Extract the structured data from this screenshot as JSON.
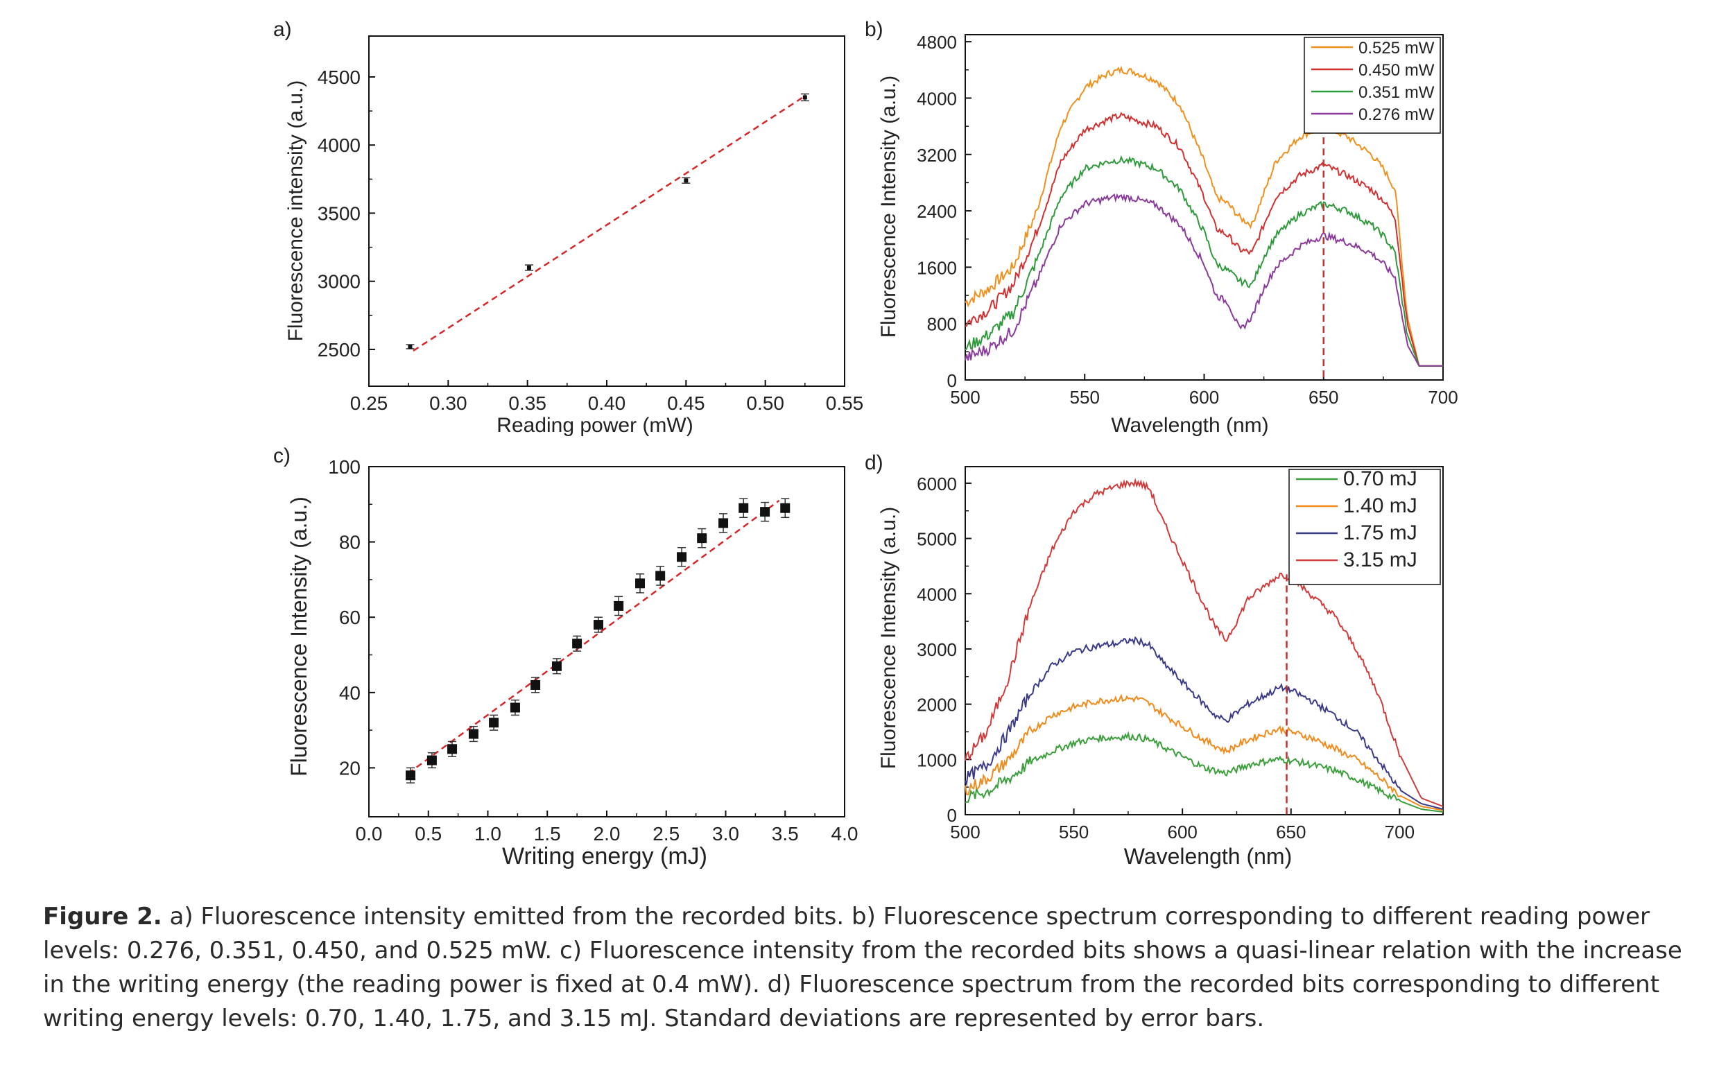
{
  "caption": {
    "label": "Figure 2.",
    "text": " a) Fluorescence intensity emitted from the recorded bits. b) Fluorescence spectrum corresponding to different reading power levels: 0.276, 0.351, 0.450, and 0.525 mW. c) Fluorescence intensity from the recorded bits shows a quasi-linear relation with the increase in the writing energy (the reading power is fixed at 0.4 mW). d) Fluorescence spectrum from the recorded bits corresponding to different writing energy levels: 0.70, 1.40, 1.75, and 3.15 mJ. Standard deviations are represented by error bars."
  },
  "chart_data": [
    {
      "panel": "a)",
      "type": "scatter",
      "xlabel": "Reading power (mW)",
      "ylabel": "Fluorescence intensity (a.u.)",
      "xlim": [
        0.25,
        0.55
      ],
      "ylim": [
        2230,
        4800
      ],
      "xticks": [
        "0.25",
        "0.30",
        "0.35",
        "0.40",
        "0.45",
        "0.50",
        "0.55"
      ],
      "yticks": [
        "2500",
        "3000",
        "3500",
        "4000",
        "4500"
      ],
      "points": [
        {
          "x": 0.276,
          "y": 2520,
          "err": 15
        },
        {
          "x": 0.351,
          "y": 3100,
          "err": 20
        },
        {
          "x": 0.45,
          "y": 3740,
          "err": 20
        },
        {
          "x": 0.525,
          "y": 4350,
          "err": 25
        }
      ],
      "fit": {
        "x": [
          0.278,
          0.525
        ],
        "y": [
          2490,
          4360
        ]
      },
      "colors": {
        "fit": "#d62728",
        "points": "#111111"
      }
    },
    {
      "panel": "b)",
      "type": "line",
      "xlabel": "Wavelength (nm)",
      "ylabel": "Fluorescence Intensity (a.u.)",
      "xlim": [
        500,
        700
      ],
      "ylim": [
        0,
        4900
      ],
      "xticks": [
        "500",
        "550",
        "600",
        "650",
        "700"
      ],
      "yticks": [
        "0",
        "800",
        "1600",
        "2400",
        "3200",
        "4000",
        "4800"
      ],
      "legend": "top-right",
      "marker_line_x": 650,
      "x": [
        500,
        510,
        520,
        530,
        540,
        550,
        560,
        565,
        570,
        580,
        590,
        600,
        605,
        610,
        615,
        620,
        625,
        630,
        640,
        650,
        660,
        670,
        675,
        680,
        685,
        690,
        700
      ],
      "series": [
        {
          "name": "0.525 mW",
          "color": "#f0901c",
          "values": [
            1100,
            1300,
            1600,
            2400,
            3600,
            4150,
            4350,
            4400,
            4380,
            4250,
            3900,
            3100,
            2600,
            2500,
            2300,
            2200,
            2650,
            3100,
            3450,
            3600,
            3450,
            3200,
            3000,
            2700,
            900,
            200,
            200
          ]
        },
        {
          "name": "0.450 mW",
          "color": "#d03030",
          "values": [
            800,
            1000,
            1350,
            2100,
            3100,
            3550,
            3700,
            3750,
            3700,
            3600,
            3300,
            2600,
            2150,
            2050,
            1850,
            1800,
            2200,
            2600,
            2900,
            3050,
            2900,
            2700,
            2550,
            2300,
            800,
            200,
            200
          ]
        },
        {
          "name": "0.351 mW",
          "color": "#2e9a3c",
          "values": [
            450,
            650,
            950,
            1700,
            2600,
            3000,
            3100,
            3120,
            3100,
            3000,
            2700,
            2100,
            1650,
            1550,
            1400,
            1350,
            1750,
            2050,
            2350,
            2500,
            2400,
            2200,
            2050,
            1800,
            650,
            200,
            200
          ]
        },
        {
          "name": "0.276 mW",
          "color": "#8a3a9a",
          "values": [
            300,
            450,
            700,
            1400,
            2200,
            2500,
            2580,
            2600,
            2580,
            2480,
            2200,
            1650,
            1200,
            1100,
            700,
            900,
            1300,
            1600,
            1900,
            2050,
            1950,
            1800,
            1650,
            1450,
            500,
            200,
            200
          ]
        }
      ]
    },
    {
      "panel": "c)",
      "type": "scatter",
      "xlabel": "Writing energy (mJ)",
      "ylabel": "Fluorescence Intensity (a.u.)",
      "xlim": [
        0,
        4
      ],
      "ylim": [
        7,
        100
      ],
      "xticks": [
        "0.0",
        "0.5",
        "1.0",
        "1.5",
        "2.0",
        "2.5",
        "3.0",
        "3.5",
        "4.0"
      ],
      "yticks": [
        "20",
        "40",
        "60",
        "80",
        "100"
      ],
      "points": [
        {
          "x": 0.35,
          "y": 18,
          "err": 2
        },
        {
          "x": 0.53,
          "y": 22,
          "err": 2
        },
        {
          "x": 0.7,
          "y": 25,
          "err": 2
        },
        {
          "x": 0.88,
          "y": 29,
          "err": 2
        },
        {
          "x": 1.05,
          "y": 32,
          "err": 2
        },
        {
          "x": 1.23,
          "y": 36,
          "err": 2
        },
        {
          "x": 1.4,
          "y": 42,
          "err": 2
        },
        {
          "x": 1.58,
          "y": 47,
          "err": 2
        },
        {
          "x": 1.75,
          "y": 53,
          "err": 2
        },
        {
          "x": 1.93,
          "y": 58,
          "err": 2
        },
        {
          "x": 2.1,
          "y": 63,
          "err": 2.5
        },
        {
          "x": 2.28,
          "y": 69,
          "err": 2.5
        },
        {
          "x": 2.45,
          "y": 71,
          "err": 2.5
        },
        {
          "x": 2.63,
          "y": 76,
          "err": 2.5
        },
        {
          "x": 2.8,
          "y": 81,
          "err": 2.5
        },
        {
          "x": 2.98,
          "y": 85,
          "err": 2.5
        },
        {
          "x": 3.15,
          "y": 89,
          "err": 2.5
        },
        {
          "x": 3.33,
          "y": 88,
          "err": 2.5
        },
        {
          "x": 3.5,
          "y": 89,
          "err": 2.5
        }
      ],
      "fit": {
        "x": [
          0.33,
          3.45
        ],
        "y": [
          18.5,
          91
        ]
      },
      "colors": {
        "fit": "#d62728",
        "points": "#111111"
      }
    },
    {
      "panel": "d)",
      "type": "line",
      "xlabel": "Wavelength (nm)",
      "ylabel": "Fluorescence Intensity (a.u.)",
      "xlim": [
        500,
        720
      ],
      "ylim": [
        0,
        6300
      ],
      "xticks": [
        "500",
        "550",
        "600",
        "650",
        "700"
      ],
      "yticks": [
        "0",
        "1000",
        "2000",
        "3000",
        "4000",
        "5000",
        "6000"
      ],
      "legend": "top-right",
      "marker_line_x": 648,
      "x": [
        500,
        510,
        520,
        530,
        540,
        550,
        560,
        570,
        575,
        580,
        585,
        590,
        600,
        610,
        615,
        620,
        625,
        630,
        640,
        645,
        650,
        660,
        670,
        680,
        690,
        700,
        710,
        720
      ],
      "series": [
        {
          "name": "0.70 mJ",
          "color": "#3a9e3a",
          "values": [
            300,
            420,
            650,
            950,
            1150,
            1300,
            1380,
            1400,
            1420,
            1400,
            1350,
            1250,
            1050,
            850,
            800,
            750,
            820,
            900,
            980,
            1000,
            980,
            900,
            800,
            650,
            450,
            250,
            100,
            50
          ]
        },
        {
          "name": "1.40 mJ",
          "color": "#f08a1a",
          "values": [
            450,
            650,
            1000,
            1500,
            1800,
            1950,
            2050,
            2100,
            2100,
            2100,
            2000,
            1850,
            1600,
            1350,
            1250,
            1150,
            1250,
            1350,
            1500,
            1550,
            1500,
            1380,
            1200,
            1000,
            700,
            350,
            150,
            80
          ]
        },
        {
          "name": "1.75 mJ",
          "color": "#3a3a8a",
          "values": [
            650,
            900,
            1500,
            2200,
            2700,
            2950,
            3050,
            3100,
            3150,
            3150,
            3050,
            2800,
            2400,
            2000,
            1800,
            1700,
            1850,
            2000,
            2200,
            2300,
            2250,
            2050,
            1800,
            1500,
            1000,
            450,
            200,
            100
          ]
        },
        {
          "name": "3.15 mJ",
          "color": "#d03a3a",
          "values": [
            1000,
            1500,
            2500,
            3800,
            4800,
            5500,
            5800,
            5950,
            6000,
            6000,
            5900,
            5400,
            4600,
            3800,
            3400,
            3150,
            3500,
            3900,
            4200,
            4350,
            4300,
            3950,
            3600,
            3000,
            2200,
            1100,
            300,
            150
          ]
        }
      ]
    }
  ]
}
